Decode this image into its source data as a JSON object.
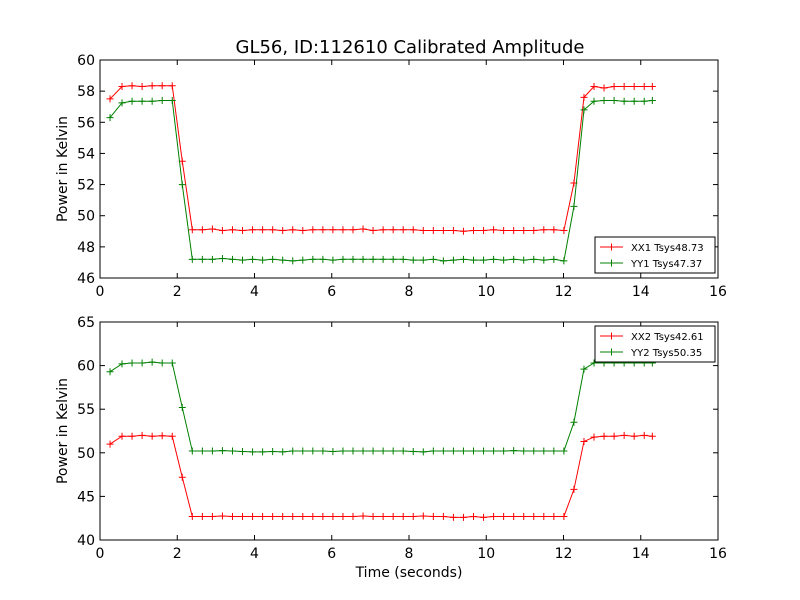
{
  "title": "GL56, ID:112610 Calibrated Amplitude",
  "colors": {
    "red": "#ff0000",
    "green": "#008000"
  },
  "chart_data": [
    {
      "type": "line",
      "xlabel": "",
      "ylabel": "Power in Kelvin",
      "xlim": [
        0,
        16
      ],
      "ylim": [
        46,
        60
      ],
      "xticks": [
        0,
        2,
        4,
        6,
        8,
        10,
        12,
        14,
        16
      ],
      "yticks": [
        46,
        48,
        50,
        52,
        54,
        56,
        58,
        60
      ],
      "grid": false,
      "legend_position": "lower-right",
      "series": [
        {
          "name": "XX1 Tsys48.73",
          "color": "#ff0000",
          "x": [
            0.26,
            0.57,
            0.83,
            1.09,
            1.35,
            1.61,
            1.87,
            2.13,
            2.39,
            2.65,
            2.91,
            3.17,
            3.43,
            3.69,
            3.95,
            4.21,
            4.47,
            4.73,
            4.99,
            5.25,
            5.51,
            5.77,
            6.03,
            6.29,
            6.55,
            6.81,
            7.07,
            7.33,
            7.59,
            7.85,
            8.11,
            8.37,
            8.63,
            8.89,
            9.15,
            9.41,
            9.67,
            9.93,
            10.19,
            10.45,
            10.71,
            10.97,
            11.23,
            11.49,
            11.75,
            12.01,
            12.27,
            12.53,
            12.79,
            13.05,
            13.31,
            13.57,
            13.83,
            14.09,
            14.3
          ],
          "y": [
            57.5,
            58.3,
            58.35,
            58.3,
            58.35,
            58.35,
            58.35,
            53.5,
            49.1,
            49.1,
            49.15,
            49.05,
            49.1,
            49.05,
            49.1,
            49.1,
            49.1,
            49.05,
            49.1,
            49.05,
            49.1,
            49.1,
            49.1,
            49.1,
            49.1,
            49.15,
            49.05,
            49.1,
            49.1,
            49.1,
            49.1,
            49.05,
            49.05,
            49.05,
            49.05,
            49.0,
            49.05,
            49.05,
            49.1,
            49.05,
            49.05,
            49.05,
            49.05,
            49.1,
            49.1,
            49.05,
            52.1,
            57.6,
            58.3,
            58.2,
            58.3,
            58.3,
            58.3,
            58.3,
            58.3
          ]
        },
        {
          "name": "YY1 Tsys47.37",
          "color": "#008000",
          "x": [
            0.26,
            0.57,
            0.83,
            1.09,
            1.35,
            1.61,
            1.87,
            2.13,
            2.39,
            2.65,
            2.91,
            3.17,
            3.43,
            3.69,
            3.95,
            4.21,
            4.47,
            4.73,
            4.99,
            5.25,
            5.51,
            5.77,
            6.03,
            6.29,
            6.55,
            6.81,
            7.07,
            7.33,
            7.59,
            7.85,
            8.11,
            8.37,
            8.63,
            8.89,
            9.15,
            9.41,
            9.67,
            9.93,
            10.19,
            10.45,
            10.71,
            10.97,
            11.23,
            11.49,
            11.75,
            12.01,
            12.27,
            12.53,
            12.79,
            13.05,
            13.31,
            13.57,
            13.83,
            14.09,
            14.3
          ],
          "y": [
            56.3,
            57.25,
            57.35,
            57.35,
            57.35,
            57.4,
            57.4,
            52.0,
            47.2,
            47.2,
            47.2,
            47.25,
            47.2,
            47.15,
            47.2,
            47.15,
            47.2,
            47.15,
            47.1,
            47.15,
            47.2,
            47.2,
            47.15,
            47.2,
            47.2,
            47.2,
            47.2,
            47.2,
            47.2,
            47.2,
            47.15,
            47.15,
            47.2,
            47.1,
            47.15,
            47.2,
            47.15,
            47.15,
            47.2,
            47.15,
            47.2,
            47.15,
            47.2,
            47.15,
            47.2,
            47.1,
            50.6,
            56.8,
            57.35,
            57.4,
            57.4,
            57.35,
            57.35,
            57.35,
            57.4
          ]
        }
      ]
    },
    {
      "type": "line",
      "xlabel": "Time (seconds)",
      "ylabel": "Power in Kelvin",
      "xlim": [
        0,
        16
      ],
      "ylim": [
        40,
        65
      ],
      "xticks": [
        0,
        2,
        4,
        6,
        8,
        10,
        12,
        14,
        16
      ],
      "yticks": [
        40,
        45,
        50,
        55,
        60,
        65
      ],
      "grid": false,
      "legend_position": "upper-right",
      "series": [
        {
          "name": "XX2 Tsys42.61",
          "color": "#ff0000",
          "x": [
            0.26,
            0.57,
            0.83,
            1.09,
            1.35,
            1.61,
            1.87,
            2.13,
            2.39,
            2.65,
            2.91,
            3.17,
            3.43,
            3.69,
            3.95,
            4.21,
            4.47,
            4.73,
            4.99,
            5.25,
            5.51,
            5.77,
            6.03,
            6.29,
            6.55,
            6.81,
            7.07,
            7.33,
            7.59,
            7.85,
            8.11,
            8.37,
            8.63,
            8.89,
            9.15,
            9.41,
            9.67,
            9.93,
            10.19,
            10.45,
            10.71,
            10.97,
            11.23,
            11.49,
            11.75,
            12.01,
            12.27,
            12.53,
            12.79,
            13.05,
            13.31,
            13.57,
            13.83,
            14.09,
            14.3
          ],
          "y": [
            51.0,
            51.9,
            51.9,
            52.0,
            51.9,
            51.95,
            51.9,
            47.2,
            42.7,
            42.7,
            42.7,
            42.75,
            42.7,
            42.7,
            42.7,
            42.7,
            42.7,
            42.7,
            42.7,
            42.7,
            42.7,
            42.7,
            42.7,
            42.7,
            42.7,
            42.75,
            42.7,
            42.7,
            42.7,
            42.7,
            42.7,
            42.75,
            42.7,
            42.7,
            42.6,
            42.6,
            42.7,
            42.6,
            42.7,
            42.7,
            42.7,
            42.7,
            42.7,
            42.7,
            42.7,
            42.7,
            45.8,
            51.3,
            51.8,
            51.9,
            51.9,
            52.0,
            51.9,
            52.0,
            51.9
          ]
        },
        {
          "name": "YY2 Tsys50.35",
          "color": "#008000",
          "x": [
            0.26,
            0.57,
            0.83,
            1.09,
            1.35,
            1.61,
            1.87,
            2.13,
            2.39,
            2.65,
            2.91,
            3.17,
            3.43,
            3.69,
            3.95,
            4.21,
            4.47,
            4.73,
            4.99,
            5.25,
            5.51,
            5.77,
            6.03,
            6.29,
            6.55,
            6.81,
            7.07,
            7.33,
            7.59,
            7.85,
            8.11,
            8.37,
            8.63,
            8.89,
            9.15,
            9.41,
            9.67,
            9.93,
            10.19,
            10.45,
            10.71,
            10.97,
            11.23,
            11.49,
            11.75,
            12.01,
            12.27,
            12.53,
            12.79,
            13.05,
            13.31,
            13.57,
            13.83,
            14.09,
            14.3
          ],
          "y": [
            59.3,
            60.2,
            60.3,
            60.3,
            60.4,
            60.3,
            60.3,
            55.2,
            50.2,
            50.2,
            50.2,
            50.25,
            50.2,
            50.15,
            50.1,
            50.1,
            50.15,
            50.1,
            50.2,
            50.2,
            50.2,
            50.2,
            50.15,
            50.2,
            50.2,
            50.2,
            50.2,
            50.2,
            50.2,
            50.2,
            50.15,
            50.1,
            50.2,
            50.2,
            50.2,
            50.2,
            50.2,
            50.2,
            50.2,
            50.2,
            50.25,
            50.2,
            50.2,
            50.2,
            50.2,
            50.2,
            53.5,
            59.6,
            60.3,
            60.3,
            60.3,
            60.3,
            60.3,
            60.3,
            60.3
          ]
        }
      ]
    }
  ]
}
